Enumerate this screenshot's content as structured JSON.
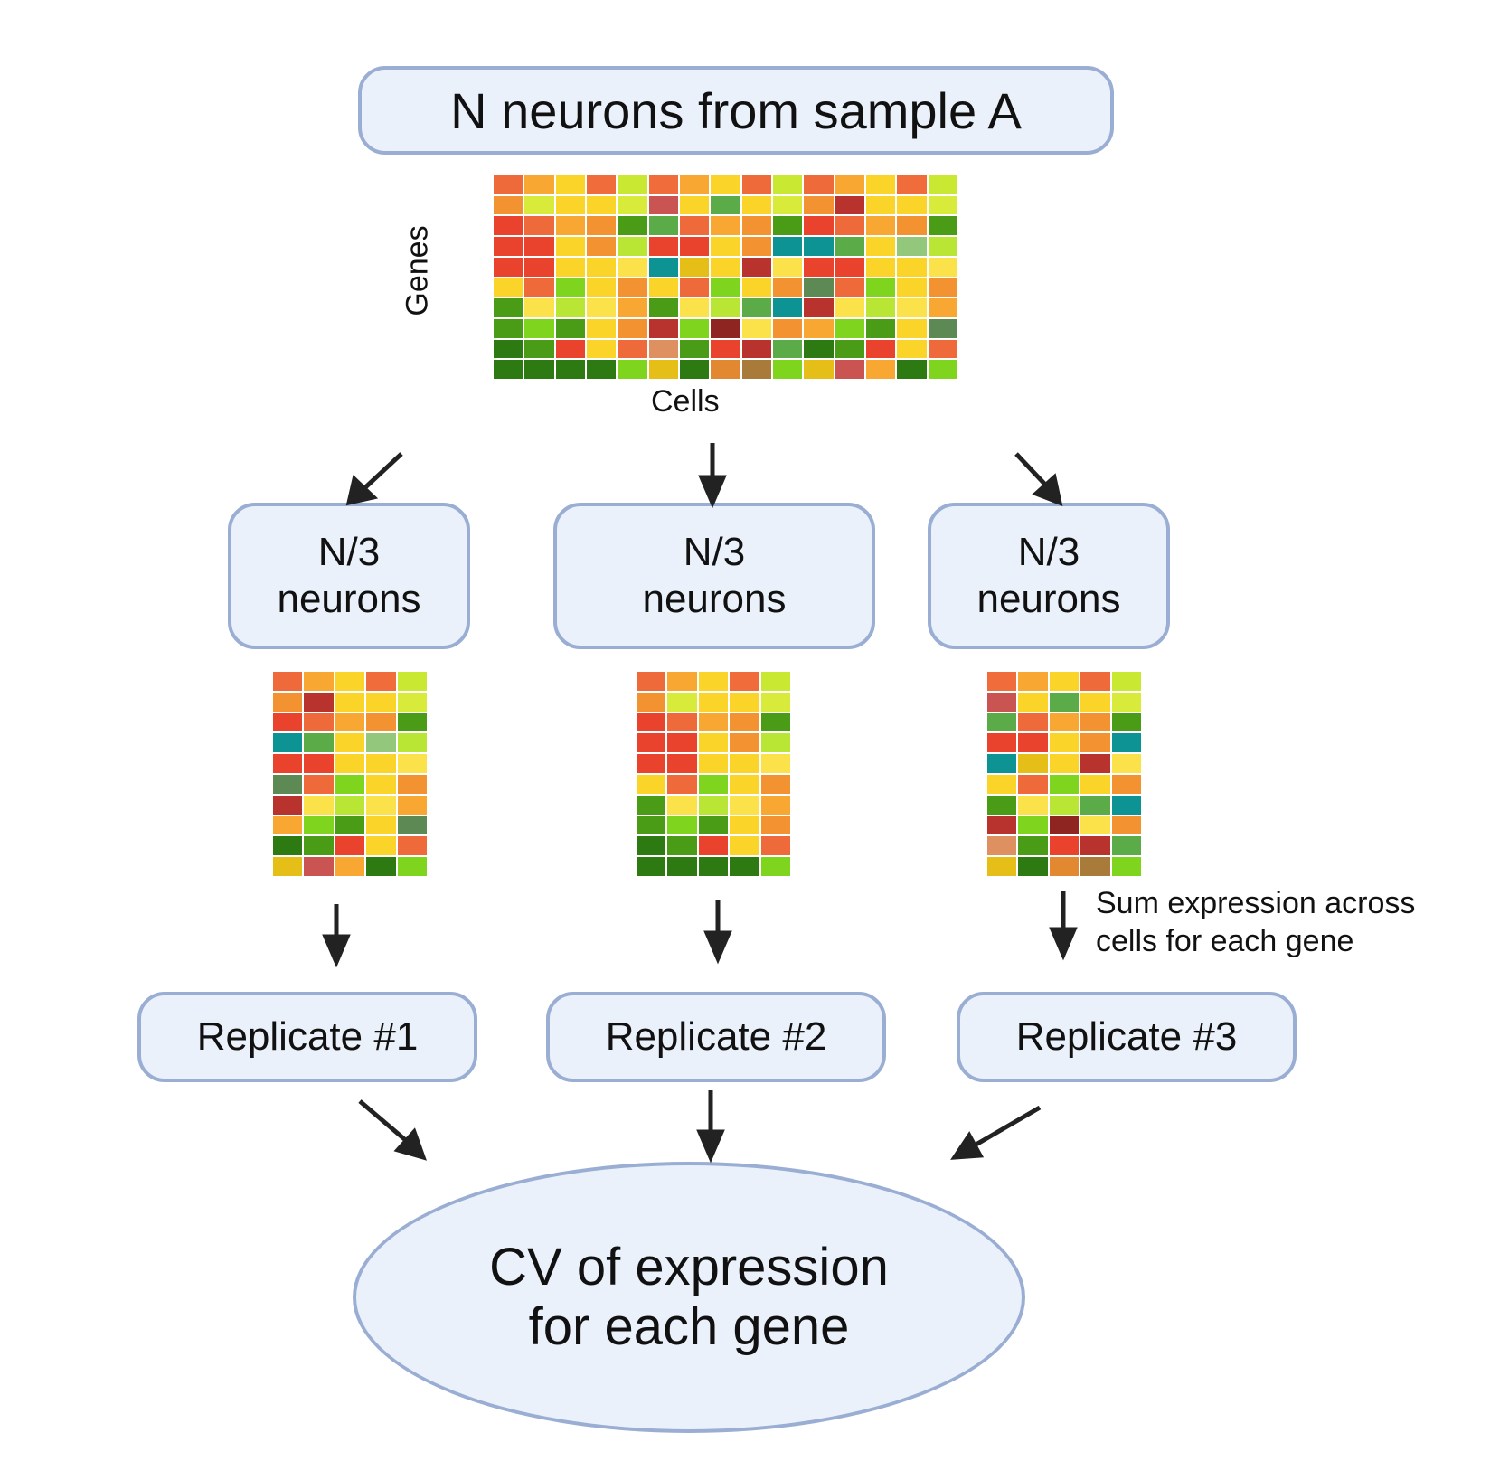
{
  "title": "N neurons from sample A",
  "axis": {
    "genes": "Genes",
    "cells": "Cells"
  },
  "subsets": [
    {
      "line1": "N/3",
      "line2": "neurons"
    },
    {
      "line1": "N/3",
      "line2": "neurons"
    },
    {
      "line1": "N/3",
      "line2": "neurons"
    }
  ],
  "note": {
    "line1": "Sum expression across",
    "line2": "cells for each gene"
  },
  "replicates": [
    "Replicate #1",
    "Replicate #2",
    "Replicate #3"
  ],
  "result": {
    "line1": "CV of expression",
    "line2": "for each gene"
  },
  "colors": {
    "box_fill": "#eaf1fa",
    "box_border": "#9aaed4",
    "palette": [
      "#ee6a3a",
      "#f8a733",
      "#fbd42a",
      "#f06c3b",
      "#d8ea3a",
      "#c95451",
      "#5cab49",
      "#b9e534",
      "#f29231",
      "#b8332e",
      "#e9432d",
      "#4a9c16",
      "#0d9394",
      "#e6be18",
      "#92c77c",
      "#5d8a54",
      "#df9060",
      "#8e2520",
      "#2d7a12",
      "#e28830",
      "#a97b3b",
      "#7fd41e",
      "#fbe24a",
      "#c8e832"
    ]
  },
  "heatmap_main": [
    [
      "#ee6a3a",
      "#f8a733",
      "#fbd42a",
      "#f06c3b",
      "#c8e832",
      "#f06c3b",
      "#f8a733",
      "#fbd42a",
      "#ee6a3a",
      "#c8e832",
      "#ee6a3a",
      "#f8a733",
      "#fbd42a",
      "#f06c3b",
      "#c8e832"
    ],
    [
      "#f29231",
      "#d8ea3a",
      "#fbd42a",
      "#fbd42a",
      "#d8ea3a",
      "#c95451",
      "#fbd42a",
      "#5cab49",
      "#fbd42a",
      "#d8ea3a",
      "#f29231",
      "#b8332e",
      "#fbd42a",
      "#fbd42a",
      "#d8ea3a"
    ],
    [
      "#e9432d",
      "#ee6a3a",
      "#f8a733",
      "#f29231",
      "#4a9c16",
      "#5cab49",
      "#ee6a3a",
      "#f8a733",
      "#f29231",
      "#4a9c16",
      "#e9432d",
      "#ee6a3a",
      "#f8a733",
      "#f29231",
      "#4a9c16"
    ],
    [
      "#e9432d",
      "#e9432d",
      "#fbd42a",
      "#f29231",
      "#b9e534",
      "#e9432d",
      "#e9432d",
      "#fbd42a",
      "#f29231",
      "#0d9394",
      "#0d9394",
      "#5cab49",
      "#fbd42a",
      "#92c77c",
      "#b9e534"
    ],
    [
      "#e9432d",
      "#e9432d",
      "#fbd42a",
      "#fbd42a",
      "#fbe24a",
      "#0d9394",
      "#e6be18",
      "#fbd42a",
      "#b8332e",
      "#fbe24a",
      "#e9432d",
      "#e9432d",
      "#fbd42a",
      "#fbd42a",
      "#fbe24a"
    ],
    [
      "#fbd42a",
      "#ee6a3a",
      "#7fd41e",
      "#fbd42a",
      "#f29231",
      "#fbd42a",
      "#ee6a3a",
      "#7fd41e",
      "#fbd42a",
      "#f29231",
      "#5d8a54",
      "#ee6a3a",
      "#7fd41e",
      "#fbd42a",
      "#f29231"
    ],
    [
      "#4a9c16",
      "#fbe24a",
      "#b9e534",
      "#fbe24a",
      "#f8a733",
      "#4a9c16",
      "#fbe24a",
      "#b9e534",
      "#5cab49",
      "#0d9394",
      "#b8332e",
      "#fbe24a",
      "#b9e534",
      "#fbe24a",
      "#f8a733"
    ],
    [
      "#4a9c16",
      "#7fd41e",
      "#4a9c16",
      "#fbd42a",
      "#f29231",
      "#b8332e",
      "#7fd41e",
      "#8e2520",
      "#fbe24a",
      "#f29231",
      "#f8a733",
      "#7fd41e",
      "#4a9c16",
      "#fbd42a",
      "#5d8a54"
    ],
    [
      "#2d7a12",
      "#4a9c16",
      "#e9432d",
      "#fbd42a",
      "#ee6a3a",
      "#df9060",
      "#4a9c16",
      "#e9432d",
      "#b8332e",
      "#5cab49",
      "#2d7a12",
      "#4a9c16",
      "#e9432d",
      "#fbd42a",
      "#ee6a3a"
    ],
    [
      "#2d7a12",
      "#2d7a12",
      "#2d7a12",
      "#2d7a12",
      "#7fd41e",
      "#e6be18",
      "#2d7a12",
      "#e28830",
      "#a97b3b",
      "#7fd41e",
      "#e6be18",
      "#c95451",
      "#f8a733",
      "#2d7a12",
      "#7fd41e"
    ]
  ],
  "heatmap_subsets": [
    [
      [
        "#ee6a3a",
        "#f8a733",
        "#fbd42a",
        "#f06c3b",
        "#c8e832"
      ],
      [
        "#f29231",
        "#b8332e",
        "#fbd42a",
        "#fbd42a",
        "#d8ea3a"
      ],
      [
        "#e9432d",
        "#ee6a3a",
        "#f8a733",
        "#f29231",
        "#4a9c16"
      ],
      [
        "#0d9394",
        "#5cab49",
        "#fbd42a",
        "#92c77c",
        "#b9e534"
      ],
      [
        "#e9432d",
        "#e9432d",
        "#fbd42a",
        "#fbd42a",
        "#fbe24a"
      ],
      [
        "#5d8a54",
        "#ee6a3a",
        "#7fd41e",
        "#fbd42a",
        "#f29231"
      ],
      [
        "#b8332e",
        "#fbe24a",
        "#b9e534",
        "#fbe24a",
        "#f8a733"
      ],
      [
        "#f8a733",
        "#7fd41e",
        "#4a9c16",
        "#fbd42a",
        "#5d8a54"
      ],
      [
        "#2d7a12",
        "#4a9c16",
        "#e9432d",
        "#fbd42a",
        "#ee6a3a"
      ],
      [
        "#e6be18",
        "#c95451",
        "#f8a733",
        "#2d7a12",
        "#7fd41e"
      ]
    ],
    [
      [
        "#ee6a3a",
        "#f8a733",
        "#fbd42a",
        "#f06c3b",
        "#c8e832"
      ],
      [
        "#f29231",
        "#d8ea3a",
        "#fbd42a",
        "#fbd42a",
        "#d8ea3a"
      ],
      [
        "#e9432d",
        "#ee6a3a",
        "#f8a733",
        "#f29231",
        "#4a9c16"
      ],
      [
        "#e9432d",
        "#e9432d",
        "#fbd42a",
        "#f29231",
        "#b9e534"
      ],
      [
        "#e9432d",
        "#e9432d",
        "#fbd42a",
        "#fbd42a",
        "#fbe24a"
      ],
      [
        "#fbd42a",
        "#ee6a3a",
        "#7fd41e",
        "#fbd42a",
        "#f29231"
      ],
      [
        "#4a9c16",
        "#fbe24a",
        "#b9e534",
        "#fbe24a",
        "#f8a733"
      ],
      [
        "#4a9c16",
        "#7fd41e",
        "#4a9c16",
        "#fbd42a",
        "#f29231"
      ],
      [
        "#2d7a12",
        "#4a9c16",
        "#e9432d",
        "#fbd42a",
        "#ee6a3a"
      ],
      [
        "#2d7a12",
        "#2d7a12",
        "#2d7a12",
        "#2d7a12",
        "#7fd41e"
      ]
    ],
    [
      [
        "#f06c3b",
        "#f8a733",
        "#fbd42a",
        "#ee6a3a",
        "#c8e832"
      ],
      [
        "#c95451",
        "#fbd42a",
        "#5cab49",
        "#fbd42a",
        "#d8ea3a"
      ],
      [
        "#5cab49",
        "#ee6a3a",
        "#f8a733",
        "#f29231",
        "#4a9c16"
      ],
      [
        "#e9432d",
        "#e9432d",
        "#fbd42a",
        "#f29231",
        "#0d9394"
      ],
      [
        "#0d9394",
        "#e6be18",
        "#fbd42a",
        "#b8332e",
        "#fbe24a"
      ],
      [
        "#fbd42a",
        "#ee6a3a",
        "#7fd41e",
        "#fbd42a",
        "#f29231"
      ],
      [
        "#4a9c16",
        "#fbe24a",
        "#b9e534",
        "#5cab49",
        "#0d9394"
      ],
      [
        "#b8332e",
        "#7fd41e",
        "#8e2520",
        "#fbe24a",
        "#f29231"
      ],
      [
        "#df9060",
        "#4a9c16",
        "#e9432d",
        "#b8332e",
        "#5cab49"
      ],
      [
        "#e6be18",
        "#2d7a12",
        "#e28830",
        "#a97b3b",
        "#7fd41e"
      ]
    ]
  ]
}
